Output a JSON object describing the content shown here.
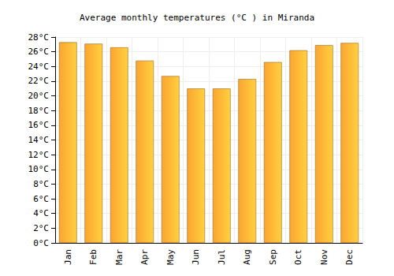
{
  "chart_data": {
    "type": "bar",
    "title": "Average monthly temperatures (°C ) in Miranda",
    "categories": [
      "Jan",
      "Feb",
      "Mar",
      "Apr",
      "May",
      "Jun",
      "Jul",
      "Aug",
      "Sep",
      "Oct",
      "Nov",
      "Dec"
    ],
    "values": [
      27.3,
      27.1,
      26.6,
      24.8,
      22.7,
      21.0,
      21.0,
      22.3,
      24.6,
      26.2,
      26.9,
      27.2
    ],
    "color": "#fba530",
    "ylim": [
      0,
      28
    ],
    "yticks": [
      {
        "value": 0,
        "label": "0°C"
      },
      {
        "value": 2,
        "label": "2°C"
      },
      {
        "value": 4,
        "label": "4°C"
      },
      {
        "value": 6,
        "label": "6°C"
      },
      {
        "value": 8,
        "label": "8°C"
      },
      {
        "value": 10,
        "label": "10°C"
      },
      {
        "value": 12,
        "label": "12°C"
      },
      {
        "value": 14,
        "label": "14°C"
      },
      {
        "value": 16,
        "label": "16°C"
      },
      {
        "value": 18,
        "label": "18°C"
      },
      {
        "value": 20,
        "label": "20°C"
      },
      {
        "value": 22,
        "label": "22°C"
      },
      {
        "value": 24,
        "label": "24°C"
      },
      {
        "value": 26,
        "label": "26°C"
      },
      {
        "value": 28,
        "label": "28°C"
      }
    ],
    "grid": true
  }
}
